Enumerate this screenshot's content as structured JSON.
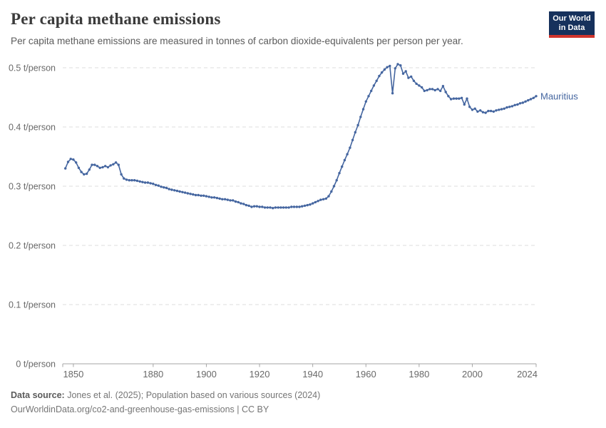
{
  "header": {
    "title": "Per capita methane emissions",
    "subtitle": "Per capita methane emissions are measured in tonnes of carbon dioxide-equivalents per person per year."
  },
  "logo": {
    "line1": "Our World",
    "line2": "in Data"
  },
  "colors": {
    "line": "#4566a0",
    "grid": "#dddddd",
    "axis": "#a5a5a5",
    "tick_label": "#696969",
    "logo_navy": "#16315c",
    "logo_red": "#d0342c"
  },
  "chart_data": {
    "type": "line",
    "title": "Per capita methane emissions",
    "unit": "t/person",
    "xlabel": "",
    "ylabel": "t/person",
    "x_range": [
      1846,
      2024
    ],
    "y_range": [
      0,
      0.5
    ],
    "grid": "horizontal-dashed",
    "legend_position": "end-of-line",
    "entity_label": "Mauritius",
    "line_color": "#4566a0",
    "x_ticks": [
      1850,
      1880,
      1900,
      1920,
      1940,
      1960,
      1980,
      2000,
      2024
    ],
    "y_ticks": [
      {
        "value": 0,
        "label": "0 t/person"
      },
      {
        "value": 0.1,
        "label": "0.1 t/person"
      },
      {
        "value": 0.2,
        "label": "0.2 t/person"
      },
      {
        "value": 0.3,
        "label": "0.3 t/person"
      },
      {
        "value": 0.4,
        "label": "0.4 t/person"
      },
      {
        "value": 0.5,
        "label": "0.5 t/person"
      }
    ],
    "series": [
      {
        "name": "Mauritius",
        "start_year": 1847,
        "end_year": 2024,
        "values": [
          0.33,
          0.341,
          0.346,
          0.345,
          0.34,
          0.331,
          0.324,
          0.32,
          0.321,
          0.328,
          0.336,
          0.336,
          0.334,
          0.331,
          0.332,
          0.334,
          0.332,
          0.335,
          0.337,
          0.34,
          0.336,
          0.32,
          0.313,
          0.311,
          0.31,
          0.31,
          0.31,
          0.309,
          0.308,
          0.307,
          0.306,
          0.306,
          0.305,
          0.304,
          0.302,
          0.301,
          0.299,
          0.298,
          0.297,
          0.295,
          0.294,
          0.293,
          0.292,
          0.291,
          0.29,
          0.289,
          0.288,
          0.287,
          0.286,
          0.285,
          0.285,
          0.284,
          0.284,
          0.283,
          0.282,
          0.281,
          0.281,
          0.28,
          0.279,
          0.278,
          0.278,
          0.277,
          0.276,
          0.276,
          0.274,
          0.273,
          0.271,
          0.27,
          0.268,
          0.267,
          0.265,
          0.266,
          0.266,
          0.265,
          0.265,
          0.264,
          0.264,
          0.264,
          0.263,
          0.264,
          0.264,
          0.264,
          0.264,
          0.264,
          0.264,
          0.265,
          0.265,
          0.265,
          0.265,
          0.266,
          0.267,
          0.268,
          0.269,
          0.271,
          0.273,
          0.275,
          0.277,
          0.278,
          0.279,
          0.283,
          0.291,
          0.3,
          0.31,
          0.322,
          0.333,
          0.344,
          0.354,
          0.365,
          0.378,
          0.391,
          0.403,
          0.417,
          0.43,
          0.443,
          0.452,
          0.461,
          0.47,
          0.478,
          0.486,
          0.492,
          0.497,
          0.501,
          0.503,
          0.457,
          0.499,
          0.506,
          0.504,
          0.49,
          0.494,
          0.483,
          0.485,
          0.478,
          0.473,
          0.47,
          0.467,
          0.461,
          0.462,
          0.464,
          0.464,
          0.462,
          0.464,
          0.461,
          0.469,
          0.459,
          0.452,
          0.447,
          0.448,
          0.448,
          0.448,
          0.449,
          0.438,
          0.448,
          0.434,
          0.429,
          0.431,
          0.426,
          0.428,
          0.425,
          0.424,
          0.427,
          0.427,
          0.426,
          0.428,
          0.429,
          0.43,
          0.431,
          0.433,
          0.434,
          0.435,
          0.437,
          0.438,
          0.44,
          0.441,
          0.443,
          0.445,
          0.447,
          0.449,
          0.452
        ]
      }
    ]
  },
  "footer": {
    "source_label": "Data source:",
    "source_text": "Jones et al. (2025); Population based on various sources (2024)",
    "note_line": "OurWorldinData.org/co2-and-greenhouse-gas-emissions | CC BY"
  }
}
